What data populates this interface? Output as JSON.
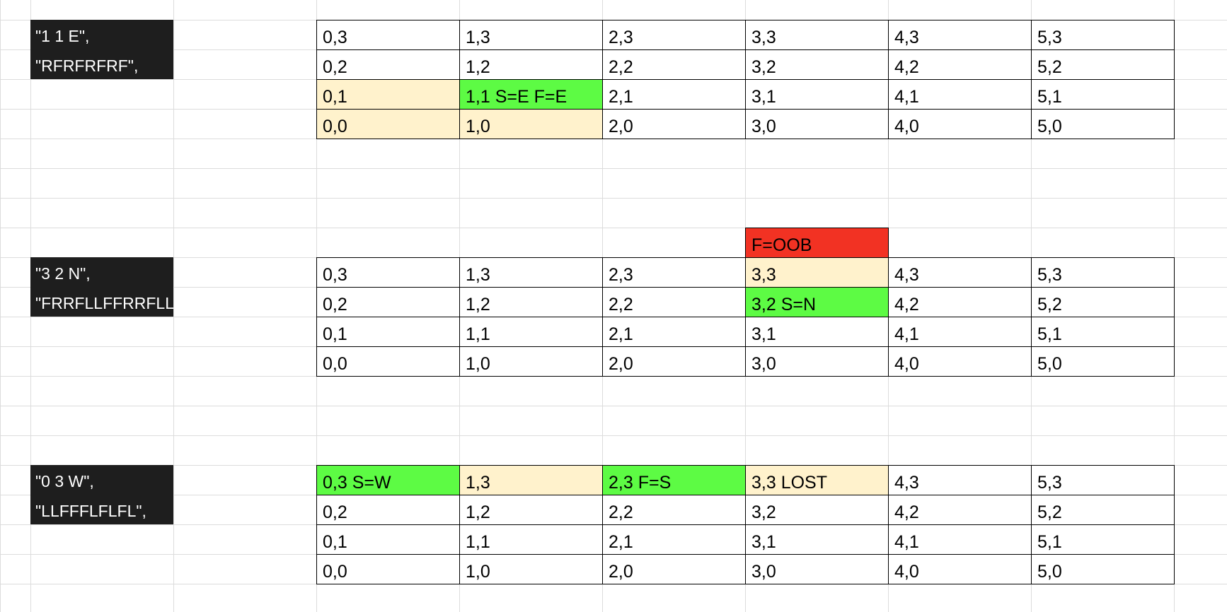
{
  "colors": {
    "path": "#fff2cc",
    "start": "#5dfb44",
    "oob": "#f23223",
    "label_bg": "#1e1e1e",
    "gridline": "#dcdcdc"
  },
  "robots": [
    {
      "input_line1": "\"1 1 E\",",
      "input_line2": "\"RFRFRFRF\",",
      "grid": [
        [
          "0,3",
          "1,3",
          "2,3",
          "3,3",
          "4,3",
          "5,3"
        ],
        [
          "0,2",
          "1,2",
          "2,2",
          "3,2",
          "4,2",
          "5,2"
        ],
        [
          "0,1",
          "1,1 S=E F=E",
          "2,1",
          "3,1",
          "4,1",
          "5,1"
        ],
        [
          "0,0",
          "1,0",
          "2,0",
          "3,0",
          "4,0",
          "5,0"
        ]
      ],
      "highlights": [
        {
          "row": 2,
          "col": 0,
          "kind": "path"
        },
        {
          "row": 2,
          "col": 1,
          "kind": "start"
        },
        {
          "row": 3,
          "col": 0,
          "kind": "path"
        },
        {
          "row": 3,
          "col": 1,
          "kind": "path"
        }
      ]
    },
    {
      "input_line1": "\"3 2 N\",",
      "input_line2": "\"FRRFLLFFRRFLL\",",
      "above_label": "F=OOB",
      "grid": [
        [
          "0,3",
          "1,3",
          "2,3",
          "3,3",
          "4,3",
          "5,3"
        ],
        [
          "0,2",
          "1,2",
          "2,2",
          "3,2 S=N",
          "4,2",
          "5,2"
        ],
        [
          "0,1",
          "1,1",
          "2,1",
          "3,1",
          "4,1",
          "5,1"
        ],
        [
          "0,0",
          "1,0",
          "2,0",
          "3,0",
          "4,0",
          "5,0"
        ]
      ],
      "highlights": [
        {
          "row": 0,
          "col": 3,
          "kind": "path"
        },
        {
          "row": 1,
          "col": 3,
          "kind": "start"
        }
      ]
    },
    {
      "input_line1": "\"0 3 W\",",
      "input_line2": "\"LLFFFLFLFL\",",
      "grid": [
        [
          "0,3 S=W",
          "1,3",
          "2,3 F=S",
          "3,3 LOST",
          "4,3",
          "5,3"
        ],
        [
          "0,2",
          "1,2",
          "2,2",
          "3,2",
          "4,2",
          "5,2"
        ],
        [
          "0,1",
          "1,1",
          "2,1",
          "3,1",
          "4,1",
          "5,1"
        ],
        [
          "0,0",
          "1,0",
          "2,0",
          "3,0",
          "4,0",
          "5,0"
        ]
      ],
      "highlights": [
        {
          "row": 0,
          "col": 0,
          "kind": "start"
        },
        {
          "row": 0,
          "col": 1,
          "kind": "path"
        },
        {
          "row": 0,
          "col": 2,
          "kind": "start"
        },
        {
          "row": 0,
          "col": 3,
          "kind": "path"
        }
      ]
    }
  ]
}
